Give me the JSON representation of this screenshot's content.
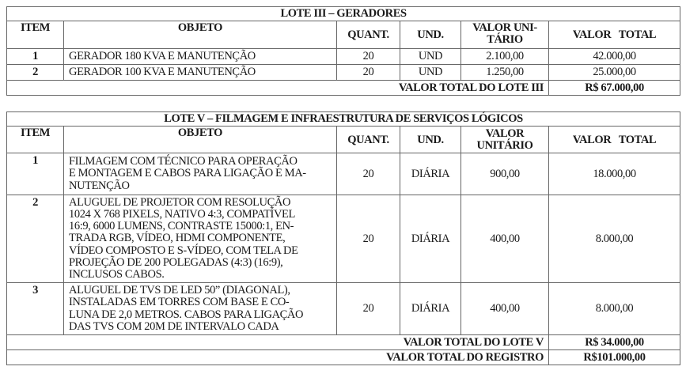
{
  "headers": {
    "item": "ITEM",
    "objeto": "OBJETO",
    "quant": "QUANT.",
    "und": "UND.",
    "valor_unitario_split": [
      "VALOR UNI-",
      "TÁRIO"
    ],
    "valor_unitario_2": [
      "VALOR",
      "UNITÁRIO"
    ],
    "valor_total": "VALOR   TOTAL"
  },
  "lote3": {
    "title": "LOTE III – GERADORES",
    "rows": [
      {
        "item": "1",
        "objeto": "GERADOR 180 KVA E MANUTENÇÃO",
        "quant": "20",
        "und": "UND",
        "unit": "2.100,00",
        "total": "42.000,00"
      },
      {
        "item": "2",
        "objeto": "GERADOR 100 KVA E MANUTENÇÃO",
        "quant": "20",
        "und": "UND",
        "unit": "1.250,00",
        "total": "25.000,00"
      }
    ],
    "total_label": "VALOR TOTAL DO LOTE III",
    "total_value": "R$ 67.000,00"
  },
  "lote5": {
    "title": "LOTE V – FILMAGEM E INFRAESTRUTURA DE SERVIÇOS LÓGICOS",
    "rows": [
      {
        "item": "1",
        "objeto_lines": [
          "FILMAGEM COM TÉCNICO PARA OPERAÇÃO",
          "E MONTAGEM E CABOS PARA LIGAÇÃO E MA-",
          "NUTENÇÃO"
        ],
        "quant": "20",
        "und": "DIÁRIA",
        "unit": "900,00",
        "total": "18.000,00"
      },
      {
        "item": "2",
        "objeto_lines": [
          "ALUGUEL DE PROJETOR COM RESOLUÇÃO",
          "1024 X 768 PIXELS, NATIVO 4:3, COMPATÍVEL",
          "16:9, 6000 LUMENS, CONTRASTE 15000:1, EN-",
          "TRADA RGB, VÍDEO, HDMI COMPONENTE,",
          "VÍDEO COMPOSTO E S-VÍDEO, COM TELA DE",
          "PROJEÇÃO DE 200 POLEGADAS (4:3) (16:9),",
          "INCLUSOS CABOS."
        ],
        "quant": "20",
        "und": "DIÁRIA",
        "unit": "400,00",
        "total": "8.000,00"
      },
      {
        "item": "3",
        "objeto_lines": [
          "ALUGUEL DE TVS DE LED 50” (DIAGONAL),",
          "INSTALADAS EM TORRES COM BASE E CO-",
          "LUNA DE 2,0 METROS. CABOS PARA LIGAÇÃO",
          "DAS TVS COM 20M DE INTERVALO CADA"
        ],
        "quant": "20",
        "und": "DIÁRIA",
        "unit": "400,00",
        "total": "8.000,00"
      }
    ],
    "total_label": "VALOR TOTAL DO LOTE V",
    "total_value": "R$ 34.000,00",
    "registro_label": "VALOR TOTAL DO REGISTRO",
    "registro_value": "R$101.000,00"
  }
}
